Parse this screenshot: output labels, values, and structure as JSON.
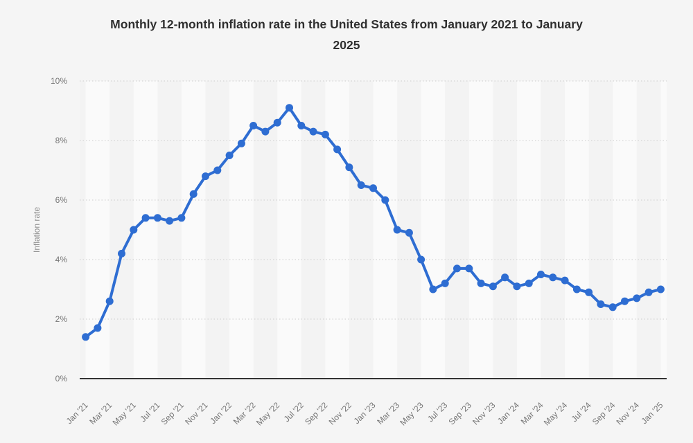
{
  "header": {
    "title_line1": "Monthly 12-month inflation rate in the United States from January 2021 to January",
    "title_line2": "2025"
  },
  "colors": {
    "page_background": "#f5f5f5",
    "band_light": "#fafafa",
    "band_dark": "#f3f3f3",
    "grid_line": "#cccccc",
    "axis_line": "#333333",
    "tick_text": "#767676",
    "axis_title_text": "#8c8c8c",
    "title_text": "#2f2f2f",
    "series_line": "#2e6dd2"
  },
  "chart_data": {
    "type": "line",
    "title": "Monthly 12-month inflation rate in the United States from January 2021 to January 2025",
    "xlabel": "",
    "ylabel": "Inflation rate",
    "ylim": [
      0,
      10
    ],
    "yticks": [
      {
        "value": 0,
        "label": "0%"
      },
      {
        "value": 2,
        "label": "2%"
      },
      {
        "value": 4,
        "label": "4%"
      },
      {
        "value": 6,
        "label": "6%"
      },
      {
        "value": 8,
        "label": "8%"
      },
      {
        "value": 10,
        "label": "10%"
      }
    ],
    "grid": {
      "horizontal": "dotted",
      "vertical": "none"
    },
    "legend_position": "none",
    "marker": "circle",
    "xtick_every": 2,
    "xtick_labels": [
      "Jan '21",
      "Mar '21",
      "May '21",
      "Jul '21",
      "Sep '21",
      "Nov '21",
      "Jan '22",
      "Mar '22",
      "May '22",
      "Jul '22",
      "Sep '22",
      "Nov '22",
      "Jan '23",
      "Mar '23",
      "May '23",
      "Jul '23",
      "Sep '23",
      "Nov '23",
      "Jan '24",
      "Mar '24",
      "May '24",
      "Jul '24",
      "Sep '24",
      "Nov '24",
      "Jan '25"
    ],
    "categories": [
      "Jan '21",
      "Feb '21",
      "Mar '21",
      "Apr '21",
      "May '21",
      "Jun '21",
      "Jul '21",
      "Aug '21",
      "Sep '21",
      "Oct '21",
      "Nov '21",
      "Dec '21",
      "Jan '22",
      "Feb '22",
      "Mar '22",
      "Apr '22",
      "May '22",
      "Jun '22",
      "Jul '22",
      "Aug '22",
      "Sep '22",
      "Oct '22",
      "Nov '22",
      "Dec '22",
      "Jan '23",
      "Feb '23",
      "Mar '23",
      "Apr '23",
      "May '23",
      "Jun '23",
      "Jul '23",
      "Aug '23",
      "Sep '23",
      "Oct '23",
      "Nov '23",
      "Dec '23",
      "Jan '24",
      "Feb '24",
      "Mar '24",
      "Apr '24",
      "May '24",
      "Jun '24",
      "Jul '24",
      "Aug '24",
      "Sep '24",
      "Oct '24",
      "Nov '24",
      "Dec '24",
      "Jan '25"
    ],
    "series": [
      {
        "name": "Inflation rate",
        "color": "#2e6dd2",
        "values": [
          1.4,
          1.7,
          2.6,
          4.2,
          5.0,
          5.4,
          5.4,
          5.3,
          5.4,
          6.2,
          6.8,
          7.0,
          7.5,
          7.9,
          8.5,
          8.3,
          8.6,
          9.1,
          8.5,
          8.3,
          8.2,
          7.7,
          7.1,
          6.5,
          6.4,
          6.0,
          5.0,
          4.9,
          4.0,
          3.0,
          3.2,
          3.7,
          3.7,
          3.2,
          3.1,
          3.4,
          3.1,
          3.2,
          3.5,
          3.4,
          3.3,
          3.0,
          2.9,
          2.5,
          2.4,
          2.6,
          2.7,
          2.9,
          3.0
        ]
      }
    ]
  }
}
